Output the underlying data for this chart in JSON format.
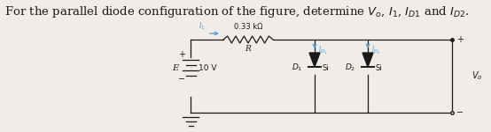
{
  "title_text": "For the parallel diode configuration of the figure, determine $V_o$, $I_1$, $I_{D1}$ and $I_{D2}$.",
  "title_fontsize": 9.5,
  "bg_color": "#f0ede8",
  "circuit": {
    "battery_label": "E",
    "battery_value": "10 V",
    "resistor_label": "R",
    "resistor_value": "0.33 kΩ",
    "diode1_label": "D₁",
    "diode1_type": "Si",
    "diode2_label": "D₂",
    "diode2_type": "Si",
    "output_label": "Vₒ",
    "I1_label": "I₁",
    "ID1_label": "I_{D1}",
    "ID2_label": "I_{D2}",
    "current_color": "#5b9bd5"
  }
}
